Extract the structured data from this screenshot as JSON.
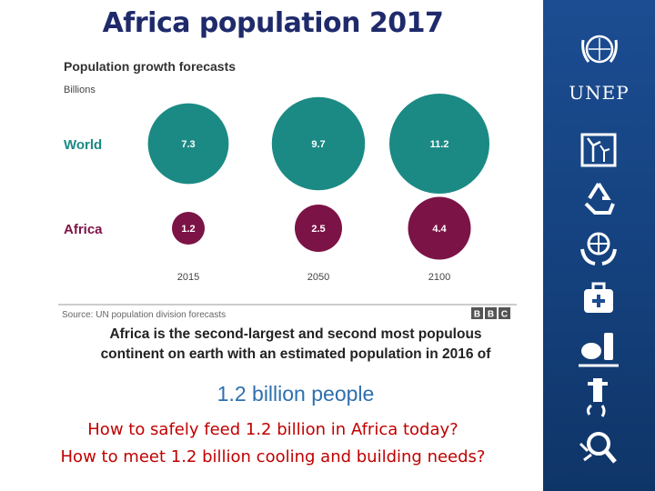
{
  "slide": {
    "title": "Africa population 2017",
    "caption_line1": "Africa is the second-largest and second most populous",
    "caption_line2": "continent on earth with an estimated population in 2016 of",
    "highlight": "1.2 billion people",
    "question1": "How to safely feed 1.2 billion in Africa today?",
    "question2": "How to meet 1.2 billion cooling and building needs?"
  },
  "sidebar": {
    "org": "UNEP",
    "icons": [
      "un-emblem-icon",
      "wind-turbine-icon",
      "recycle-icon",
      "globe-hands-icon",
      "medical-kit-icon",
      "pollution-icon",
      "water-tap-icon",
      "magnifier-icon"
    ]
  },
  "colors": {
    "world": "#1b8a84",
    "africa": "#7c1346",
    "title": "#1f2a6b",
    "sidebar": "#1c4d92",
    "question": "#c00000"
  },
  "chart_data": {
    "type": "scatter",
    "title": "Population growth forecasts",
    "subtitle": "Billions",
    "source": "Source: UN population division forecasts",
    "logo": "BBC",
    "categories": [
      "2015",
      "2050",
      "2100"
    ],
    "series": [
      {
        "name": "World",
        "values": [
          7.3,
          9.7,
          11.2
        ]
      },
      {
        "name": "Africa",
        "values": [
          1.2,
          2.5,
          4.4
        ]
      }
    ],
    "encoding": "bubble area proportional to value"
  }
}
